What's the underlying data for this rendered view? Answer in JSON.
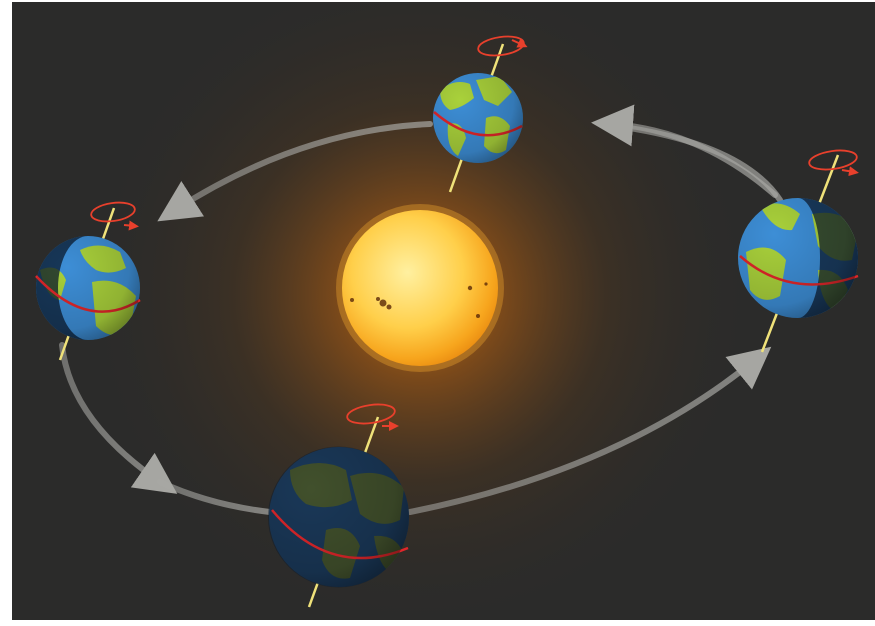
{
  "diagram": {
    "type": "earth-orbit-seasons",
    "labels": [],
    "colors": {
      "background": "#2a2a29",
      "frame": "#ffffff",
      "sun_core": "#ffd45a",
      "sun_edge": "#f39a12",
      "sun_glow": "#e0780c",
      "ocean": "#3d8ed6",
      "land": "#a9d13b",
      "equator": "#e0262a",
      "axis": "#f0e27a",
      "rotation_arrow": "#e8402c",
      "orbit": "#9a9a96"
    },
    "earths": [
      "top",
      "left",
      "right",
      "bottom"
    ],
    "orbit_direction": "counterclockwise",
    "earth_count": 4
  }
}
